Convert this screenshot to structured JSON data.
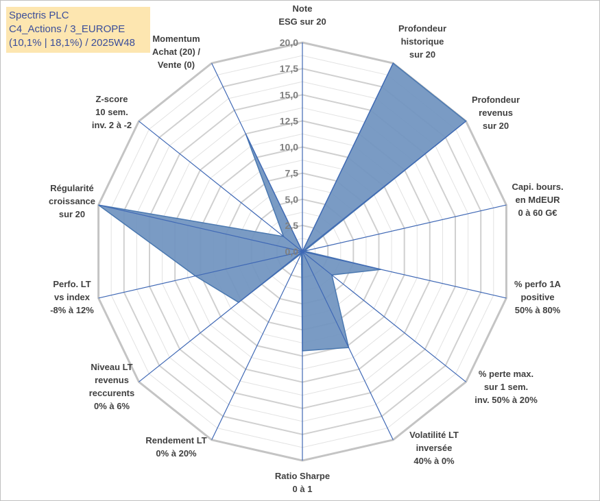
{
  "title": {
    "line1": "Spectris PLC",
    "line2": "C4_Actions / 3_EUROPE",
    "line3": "(10,1% | 18,1%) / 2025W48"
  },
  "chart_data": {
    "type": "radar",
    "rmax": 20,
    "ticks": [
      "0,0",
      "2,5",
      "5,0",
      "7,5",
      "10,0",
      "12,5",
      "15,0",
      "17,5",
      "20,0"
    ],
    "tick_values": [
      0,
      2.5,
      5,
      7.5,
      10,
      12.5,
      15,
      17.5,
      20
    ],
    "series_color": "#4a78b0",
    "series_fill": "#6f93bf",
    "grid_color": "#c9c9c9",
    "axes": [
      {
        "label": [
          "Note",
          "ESG sur 20"
        ],
        "value": 0
      },
      {
        "label": [
          "Profondeur",
          "historique",
          "sur 20"
        ],
        "value": 20
      },
      {
        "label": [
          "Profondeur",
          "revenus",
          "sur 20"
        ],
        "value": 20
      },
      {
        "label": [
          "Capi. bours.",
          "en MdEUR",
          "0 à 60 G€"
        ],
        "value": 0.2
      },
      {
        "label": [
          "% perfo 1A",
          "positive",
          "50% à 80%"
        ],
        "value": 7.7
      },
      {
        "label": [
          "% perte max.",
          "sur 1 sem.",
          "inv. 50% à 20%"
        ],
        "value": 3.6
      },
      {
        "label": [
          "Volatilité LT",
          "inversée",
          "40% à 0%"
        ],
        "value": 10.2
      },
      {
        "label": [
          "Ratio Sharpe",
          "0 à 1"
        ],
        "value": 9.5
      },
      {
        "label": [
          "Rendement LT",
          "0% à 20%"
        ],
        "value": 0.2
      },
      {
        "label": [
          "Niveau LT",
          "revenus",
          "reccurents",
          "0% à 6%"
        ],
        "value": 7.8
      },
      {
        "label": [
          "Perfo. LT",
          "vs index",
          "-8% à 12%"
        ],
        "value": 10.5
      },
      {
        "label": [
          "Régularité",
          "croissance",
          "sur 20"
        ],
        "value": 20
      },
      {
        "label": [
          "Z-score",
          "10 sem.",
          "inv. 2 à -2"
        ],
        "value": 2.3
      },
      {
        "label": [
          "Momentum",
          "Achat (20) /",
          "Vente (0)"
        ],
        "value": 12.5
      }
    ]
  }
}
